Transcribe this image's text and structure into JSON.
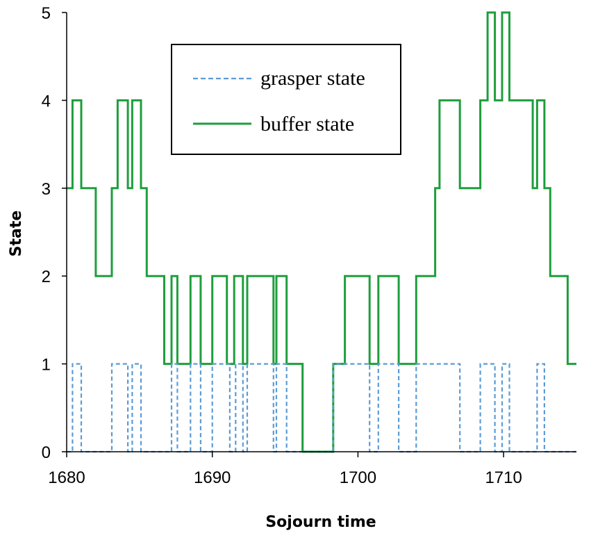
{
  "chart_data": {
    "type": "line",
    "step": true,
    "xlabel": "Sojourn time",
    "ylabel": "State",
    "xlim": [
      1680,
      1715
    ],
    "ylim": [
      0,
      5
    ],
    "xticks": [
      1680,
      1690,
      1700,
      1710
    ],
    "yticks": [
      0,
      1,
      2,
      3,
      4,
      5
    ],
    "grid": false,
    "legend_position": "top-center",
    "series": [
      {
        "name": "grasper state",
        "color": "#5B9BD5",
        "dash": "dashed",
        "points": [
          [
            1680,
            0
          ],
          [
            1680.4,
            0
          ],
          [
            1680.4,
            1
          ],
          [
            1681.0,
            1
          ],
          [
            1681.0,
            0
          ],
          [
            1683.1,
            0
          ],
          [
            1683.1,
            1
          ],
          [
            1684.2,
            1
          ],
          [
            1684.2,
            0
          ],
          [
            1684.5,
            0
          ],
          [
            1684.5,
            1
          ],
          [
            1685.1,
            1
          ],
          [
            1685.1,
            0
          ],
          [
            1687.2,
            0
          ],
          [
            1687.2,
            1
          ],
          [
            1687.6,
            1
          ],
          [
            1687.6,
            0
          ],
          [
            1688.5,
            0
          ],
          [
            1688.5,
            1
          ],
          [
            1689.2,
            1
          ],
          [
            1689.2,
            0
          ],
          [
            1690.0,
            0
          ],
          [
            1690.0,
            1
          ],
          [
            1691.2,
            1
          ],
          [
            1691.2,
            0
          ],
          [
            1691.6,
            0
          ],
          [
            1691.6,
            1
          ],
          [
            1692.1,
            1
          ],
          [
            1692.1,
            0
          ],
          [
            1692.4,
            0
          ],
          [
            1692.4,
            1
          ],
          [
            1694.2,
            1
          ],
          [
            1694.2,
            0
          ],
          [
            1694.4,
            0
          ],
          [
            1694.4,
            1
          ],
          [
            1695.1,
            1
          ],
          [
            1695.1,
            0
          ],
          [
            1698.3,
            0
          ],
          [
            1698.3,
            1
          ],
          [
            1700.8,
            1
          ],
          [
            1700.8,
            0
          ],
          [
            1701.4,
            0
          ],
          [
            1701.4,
            1
          ],
          [
            1702.8,
            1
          ],
          [
            1702.8,
            0
          ],
          [
            1704.0,
            0
          ],
          [
            1704.0,
            1
          ],
          [
            1707.0,
            1
          ],
          [
            1707.0,
            0
          ],
          [
            1708.4,
            0
          ],
          [
            1708.4,
            1
          ],
          [
            1709.4,
            1
          ],
          [
            1709.4,
            0
          ],
          [
            1709.9,
            0
          ],
          [
            1709.9,
            1
          ],
          [
            1710.4,
            1
          ],
          [
            1710.4,
            0
          ],
          [
            1712.3,
            0
          ],
          [
            1712.3,
            1
          ],
          [
            1712.8,
            1
          ],
          [
            1712.8,
            0
          ],
          [
            1715,
            0
          ]
        ]
      },
      {
        "name": "buffer state",
        "color": "#1E9E3C",
        "dash": "solid",
        "points": [
          [
            1680,
            3
          ],
          [
            1680.4,
            3
          ],
          [
            1680.4,
            4
          ],
          [
            1681.0,
            4
          ],
          [
            1681.0,
            3
          ],
          [
            1682.0,
            3
          ],
          [
            1682.0,
            2
          ],
          [
            1683.1,
            2
          ],
          [
            1683.1,
            3
          ],
          [
            1683.5,
            3
          ],
          [
            1683.5,
            4
          ],
          [
            1684.2,
            4
          ],
          [
            1684.2,
            3
          ],
          [
            1684.5,
            3
          ],
          [
            1684.5,
            4
          ],
          [
            1685.1,
            4
          ],
          [
            1685.1,
            3
          ],
          [
            1685.5,
            3
          ],
          [
            1685.5,
            2
          ],
          [
            1686.7,
            2
          ],
          [
            1686.7,
            1
          ],
          [
            1687.2,
            1
          ],
          [
            1687.2,
            2
          ],
          [
            1687.6,
            2
          ],
          [
            1687.6,
            1
          ],
          [
            1688.5,
            1
          ],
          [
            1688.5,
            2
          ],
          [
            1689.2,
            2
          ],
          [
            1689.2,
            1
          ],
          [
            1690.0,
            1
          ],
          [
            1690.0,
            2
          ],
          [
            1691.0,
            2
          ],
          [
            1691.0,
            1
          ],
          [
            1691.5,
            1
          ],
          [
            1691.5,
            2
          ],
          [
            1692.1,
            2
          ],
          [
            1692.1,
            1
          ],
          [
            1692.4,
            1
          ],
          [
            1692.4,
            2
          ],
          [
            1694.2,
            2
          ],
          [
            1694.2,
            1
          ],
          [
            1694.4,
            1
          ],
          [
            1694.4,
            2
          ],
          [
            1695.1,
            2
          ],
          [
            1695.1,
            1
          ],
          [
            1696.2,
            1
          ],
          [
            1696.2,
            0
          ],
          [
            1698.3,
            0
          ],
          [
            1698.3,
            1
          ],
          [
            1699.1,
            1
          ],
          [
            1699.1,
            2
          ],
          [
            1700.8,
            2
          ],
          [
            1700.8,
            1
          ],
          [
            1701.4,
            1
          ],
          [
            1701.4,
            2
          ],
          [
            1702.8,
            2
          ],
          [
            1702.8,
            1
          ],
          [
            1704.0,
            1
          ],
          [
            1704.0,
            2
          ],
          [
            1705.3,
            2
          ],
          [
            1705.3,
            3
          ],
          [
            1705.6,
            3
          ],
          [
            1705.6,
            4
          ],
          [
            1707.0,
            4
          ],
          [
            1707.0,
            3
          ],
          [
            1708.4,
            3
          ],
          [
            1708.4,
            4
          ],
          [
            1708.9,
            4
          ],
          [
            1708.9,
            5
          ],
          [
            1709.4,
            5
          ],
          [
            1709.4,
            4
          ],
          [
            1709.9,
            4
          ],
          [
            1709.9,
            5
          ],
          [
            1710.4,
            5
          ],
          [
            1710.4,
            4
          ],
          [
            1712.0,
            4
          ],
          [
            1712.0,
            3
          ],
          [
            1712.3,
            3
          ],
          [
            1712.3,
            4
          ],
          [
            1712.8,
            4
          ],
          [
            1712.8,
            3
          ],
          [
            1713.2,
            3
          ],
          [
            1713.2,
            2
          ],
          [
            1714.4,
            2
          ],
          [
            1714.4,
            1
          ],
          [
            1715,
            1
          ]
        ]
      }
    ]
  }
}
